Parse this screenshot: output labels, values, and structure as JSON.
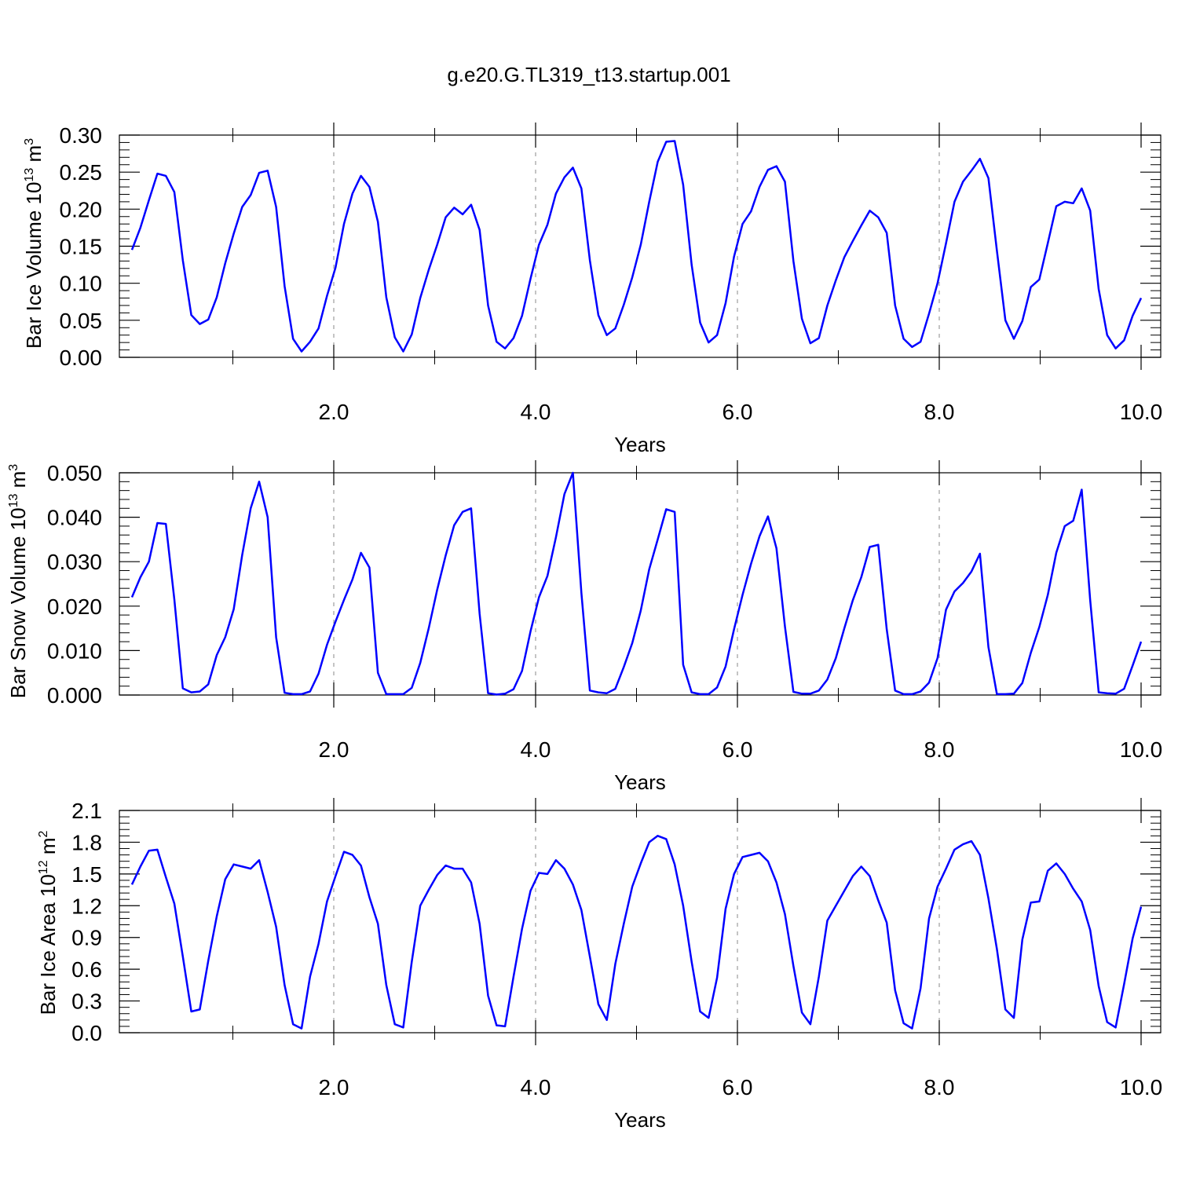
{
  "title": "g.e20.G.TL319_t13.startup.001",
  "chart_data": [
    {
      "type": "line",
      "ylabel": "Bar Ice Volume 10",
      "ylabel_exp": "13",
      "ylabel_unit": " m",
      "ylabel_unit_exp": "3",
      "xlabel": "Years",
      "xlim": [
        0.0,
        10.0
      ],
      "ylim": [
        0.0,
        0.3
      ],
      "x_ticks": [
        "2.0",
        "4.0",
        "6.0",
        "8.0",
        "10.0"
      ],
      "x_tick_values": [
        2,
        4,
        6,
        8,
        10
      ],
      "y_ticks": [
        "0.00",
        "0.05",
        "0.10",
        "0.15",
        "0.20",
        "0.25",
        "0.30"
      ],
      "y_tick_values": [
        0.0,
        0.05,
        0.1,
        0.15,
        0.2,
        0.25,
        0.3
      ],
      "line_color": "#0000ff",
      "series": [
        {
          "values": [
            0.145,
            0.175,
            0.212,
            0.248,
            0.245,
            0.223,
            0.131,
            0.057,
            0.045,
            0.051,
            0.081,
            0.127,
            0.167,
            0.203,
            0.219,
            0.249,
            0.252,
            0.203,
            0.096,
            0.025,
            0.008,
            0.021,
            0.039,
            0.083,
            0.121,
            0.18,
            0.221,
            0.245,
            0.23,
            0.183,
            0.081,
            0.027,
            0.008,
            0.031,
            0.08,
            0.118,
            0.152,
            0.189,
            0.202,
            0.193,
            0.206,
            0.172,
            0.07,
            0.021,
            0.012,
            0.026,
            0.056,
            0.106,
            0.152,
            0.179,
            0.221,
            0.243,
            0.256,
            0.228,
            0.131,
            0.057,
            0.03,
            0.039,
            0.071,
            0.108,
            0.152,
            0.21,
            0.264,
            0.291,
            0.292,
            0.233,
            0.125,
            0.047,
            0.02,
            0.03,
            0.073,
            0.136,
            0.18,
            0.197,
            0.23,
            0.253,
            0.258,
            0.237,
            0.13,
            0.052,
            0.019,
            0.026,
            0.07,
            0.104,
            0.135,
            0.157,
            0.178,
            0.198,
            0.189,
            0.168,
            0.07,
            0.025,
            0.014,
            0.021,
            0.059,
            0.1,
            0.154,
            0.21,
            0.237,
            0.252,
            0.268,
            0.242,
            0.144,
            0.05,
            0.025,
            0.049,
            0.095,
            0.105,
            0.154,
            0.204,
            0.21,
            0.208,
            0.228,
            0.198,
            0.092,
            0.03,
            0.012,
            0.023,
            0.056,
            0.08
          ]
        }
      ]
    },
    {
      "type": "line",
      "ylabel": "Bar Snow Volume 10",
      "ylabel_exp": "13",
      "ylabel_unit": " m",
      "ylabel_unit_exp": "3",
      "xlabel": "Years",
      "xlim": [
        0.0,
        10.0
      ],
      "ylim": [
        0.0,
        0.05
      ],
      "x_ticks": [
        "2.0",
        "4.0",
        "6.0",
        "8.0",
        "10.0"
      ],
      "x_tick_values": [
        2,
        4,
        6,
        8,
        10
      ],
      "y_ticks": [
        "0.000",
        "0.010",
        "0.020",
        "0.030",
        "0.040",
        "0.050"
      ],
      "y_tick_values": [
        0.0,
        0.01,
        0.02,
        0.03,
        0.04,
        0.05
      ],
      "line_color": "#0000ff",
      "series": [
        {
          "values": [
            0.022,
            0.0265,
            0.03,
            0.0387,
            0.0385,
            0.0215,
            0.0015,
            0.0006,
            0.0008,
            0.0024,
            0.009,
            0.013,
            0.0193,
            0.0315,
            0.042,
            0.048,
            0.04,
            0.013,
            0.0005,
            0.0002,
            0.0002,
            0.0008,
            0.0048,
            0.0113,
            0.0165,
            0.0214,
            0.026,
            0.032,
            0.0287,
            0.005,
            0.0002,
            0.0002,
            0.0002,
            0.0016,
            0.0072,
            0.015,
            0.0237,
            0.0314,
            0.0382,
            0.0412,
            0.042,
            0.0183,
            0.0004,
            0.0001,
            0.0003,
            0.0013,
            0.0054,
            0.0143,
            0.022,
            0.0268,
            0.0355,
            0.0452,
            0.05,
            0.023,
            0.001,
            0.0006,
            0.0004,
            0.0014,
            0.0063,
            0.0117,
            0.019,
            0.0283,
            0.035,
            0.0418,
            0.0412,
            0.0068,
            0.0006,
            0.0002,
            0.0002,
            0.0017,
            0.0064,
            0.0148,
            0.0225,
            0.0295,
            0.0357,
            0.0402,
            0.033,
            0.0154,
            0.0007,
            0.0003,
            0.0003,
            0.001,
            0.0035,
            0.0083,
            0.015,
            0.0213,
            0.0265,
            0.0333,
            0.0338,
            0.0148,
            0.001,
            0.0002,
            0.0002,
            0.0008,
            0.0028,
            0.0083,
            0.0192,
            0.0233,
            0.0252,
            0.0278,
            0.0318,
            0.0108,
            0.0002,
            0.0002,
            0.0003,
            0.0027,
            0.0095,
            0.0153,
            0.0225,
            0.032,
            0.038,
            0.0392,
            0.0462,
            0.0213,
            0.0006,
            0.0004,
            0.0003,
            0.0014,
            0.0066,
            0.012
          ]
        }
      ]
    },
    {
      "type": "line",
      "ylabel": "Bar Ice Area 10",
      "ylabel_exp": "12",
      "ylabel_unit": " m",
      "ylabel_unit_exp": "2",
      "xlabel": "Years",
      "xlim": [
        0.0,
        10.0
      ],
      "ylim": [
        0.0,
        2.1
      ],
      "x_ticks": [
        "2.0",
        "4.0",
        "6.0",
        "8.0",
        "10.0"
      ],
      "x_tick_values": [
        2,
        4,
        6,
        8,
        10
      ],
      "y_ticks": [
        "0.0",
        "0.3",
        "0.6",
        "0.9",
        "1.2",
        "1.5",
        "1.8",
        "2.1"
      ],
      "y_tick_values": [
        0.0,
        0.3,
        0.6,
        0.9,
        1.2,
        1.5,
        1.8,
        2.1
      ],
      "line_color": "#0000ff",
      "series": [
        {
          "values": [
            1.4,
            1.57,
            1.72,
            1.73,
            1.47,
            1.22,
            0.72,
            0.2,
            0.22,
            0.68,
            1.1,
            1.45,
            1.59,
            1.57,
            1.55,
            1.63,
            1.33,
            1.0,
            0.45,
            0.08,
            0.04,
            0.53,
            0.84,
            1.24,
            1.48,
            1.71,
            1.68,
            1.58,
            1.28,
            1.03,
            0.45,
            0.08,
            0.05,
            0.67,
            1.2,
            1.35,
            1.49,
            1.58,
            1.55,
            1.55,
            1.42,
            1.03,
            0.35,
            0.07,
            0.06,
            0.53,
            0.98,
            1.34,
            1.51,
            1.5,
            1.63,
            1.55,
            1.4,
            1.16,
            0.72,
            0.27,
            0.12,
            0.65,
            1.03,
            1.38,
            1.6,
            1.8,
            1.86,
            1.83,
            1.59,
            1.2,
            0.67,
            0.2,
            0.14,
            0.52,
            1.17,
            1.5,
            1.66,
            1.68,
            1.7,
            1.62,
            1.42,
            1.12,
            0.63,
            0.19,
            0.08,
            0.53,
            1.06,
            1.2,
            1.34,
            1.48,
            1.57,
            1.48,
            1.25,
            1.04,
            0.4,
            0.09,
            0.04,
            0.42,
            1.08,
            1.38,
            1.55,
            1.73,
            1.78,
            1.81,
            1.68,
            1.27,
            0.79,
            0.22,
            0.14,
            0.88,
            1.23,
            1.24,
            1.53,
            1.6,
            1.5,
            1.36,
            1.24,
            0.97,
            0.44,
            0.1,
            0.05,
            0.46,
            0.89,
            1.19
          ]
        }
      ]
    }
  ]
}
